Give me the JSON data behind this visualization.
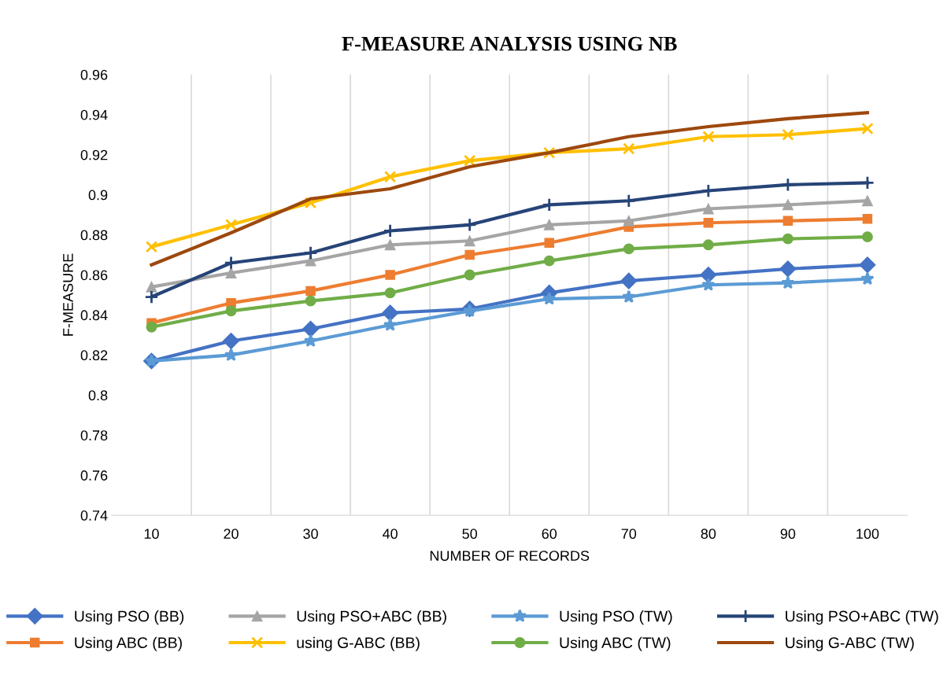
{
  "chart_data": {
    "type": "line",
    "title": "F-MEASURE ANALYSIS USING NB",
    "xlabel": "NUMBER OF RECORDS",
    "ylabel": "F-MEASURE",
    "categories": [
      "10",
      "20",
      "30",
      "40",
      "50",
      "60",
      "70",
      "80",
      "90",
      "100"
    ],
    "ylim": [
      0.74,
      0.96
    ],
    "yticks": [
      {
        "value": 0.74,
        "label": "0.74"
      },
      {
        "value": 0.76,
        "label": "0.76"
      },
      {
        "value": 0.78,
        "label": "0.78"
      },
      {
        "value": 0.8,
        "label": "0.8"
      },
      {
        "value": 0.82,
        "label": "0.82"
      },
      {
        "value": 0.84,
        "label": "0.84"
      },
      {
        "value": 0.86,
        "label": "0.86"
      },
      {
        "value": 0.88,
        "label": "0.88"
      },
      {
        "value": 0.9,
        "label": "0.9"
      },
      {
        "value": 0.92,
        "label": "0.92"
      },
      {
        "value": 0.94,
        "label": "0.94"
      },
      {
        "value": 0.96,
        "label": "0.96"
      }
    ],
    "grid": "x",
    "legend": "bottom",
    "series": [
      {
        "name": "Using PSO (BB)",
        "color": "#4472c4",
        "marker": "diamond",
        "values": [
          0.817,
          0.827,
          0.833,
          0.841,
          0.843,
          0.851,
          0.857,
          0.86,
          0.863,
          0.865
        ]
      },
      {
        "name": "Using ABC (BB)",
        "color": "#ed7d31",
        "marker": "square",
        "values": [
          0.836,
          0.846,
          0.852,
          0.86,
          0.87,
          0.876,
          0.884,
          0.886,
          0.887,
          0.888
        ]
      },
      {
        "name": "Using PSO+ABC (BB)",
        "color": "#a5a5a5",
        "marker": "triangle",
        "values": [
          0.854,
          0.861,
          0.867,
          0.875,
          0.877,
          0.885,
          0.887,
          0.893,
          0.895,
          0.897
        ]
      },
      {
        "name": "using G-ABC (BB)",
        "color": "#ffc000",
        "marker": "cross",
        "values": [
          0.874,
          0.885,
          0.896,
          0.909,
          0.917,
          0.921,
          0.923,
          0.929,
          0.93,
          0.933
        ]
      },
      {
        "name": "Using PSO (TW)",
        "color": "#5b9bd5",
        "marker": "star",
        "values": [
          0.817,
          0.82,
          0.827,
          0.835,
          0.842,
          0.848,
          0.849,
          0.855,
          0.856,
          0.858
        ]
      },
      {
        "name": "Using ABC (TW)",
        "color": "#70ad47",
        "marker": "circle",
        "values": [
          0.834,
          0.842,
          0.847,
          0.851,
          0.86,
          0.867,
          0.873,
          0.875,
          0.878,
          0.879
        ]
      },
      {
        "name": "Using PSO+ABC (TW)",
        "color": "#264478",
        "marker": "plus",
        "values": [
          0.849,
          0.866,
          0.871,
          0.882,
          0.885,
          0.895,
          0.897,
          0.902,
          0.905,
          0.906
        ]
      },
      {
        "name": "Using G-ABC (TW)",
        "color": "#9e480e",
        "marker": "none",
        "values": [
          0.865,
          0.881,
          0.898,
          0.903,
          0.914,
          0.921,
          0.929,
          0.934,
          0.938,
          0.941
        ]
      }
    ]
  }
}
